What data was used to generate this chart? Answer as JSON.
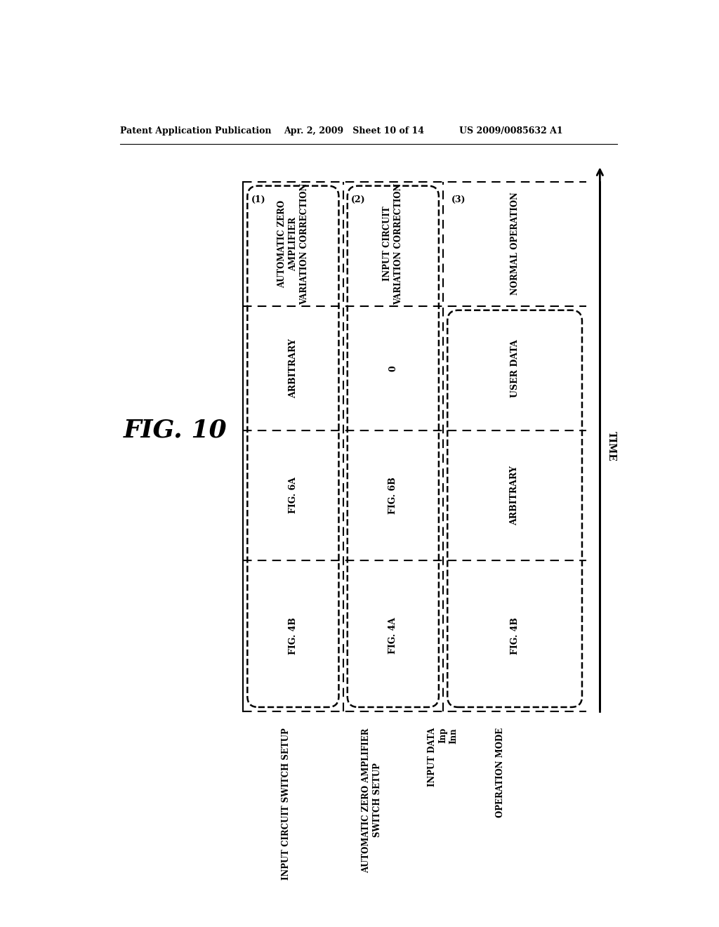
{
  "header_left": "Patent Application Publication",
  "header_mid": "Apr. 2, 2009   Sheet 10 of 14",
  "header_right": "US 2009/0085632 A1",
  "fig_label": "FIG. 10",
  "time_arrow_label": "TIME",
  "phase_labels": [
    "(1)",
    "(2)",
    "(3)"
  ],
  "phase_headers": [
    "AUTOMATIC ZERO\nAMPLIFIER\nVARIATION CORRECTION",
    "INPUT CIRCUIT\nVARIATION CORRECTION",
    "NORMAL OPERATION"
  ],
  "phase_input_data": [
    "ARBITRARY",
    "0",
    "USER DATA"
  ],
  "phase_az_switch": [
    "FIG. 6A",
    "FIG. 6B",
    "ARBITRARY"
  ],
  "phase_ic_switch": [
    "FIG. 4B",
    "FIG. 4A",
    "FIG. 4B"
  ],
  "row_label_0": "OPERATION MODE",
  "row_label_1": "INPUT DATA",
  "row_label_1a": "Inp",
  "row_label_1b": "Inn",
  "row_label_2": "AUTOMATIC ZERO AMPLIFIER\nSWITCH SETUP",
  "row_label_3": "INPUT CIRCUIT SWITCH SETUP",
  "bg_color": "#ffffff",
  "text_color": "#000000"
}
